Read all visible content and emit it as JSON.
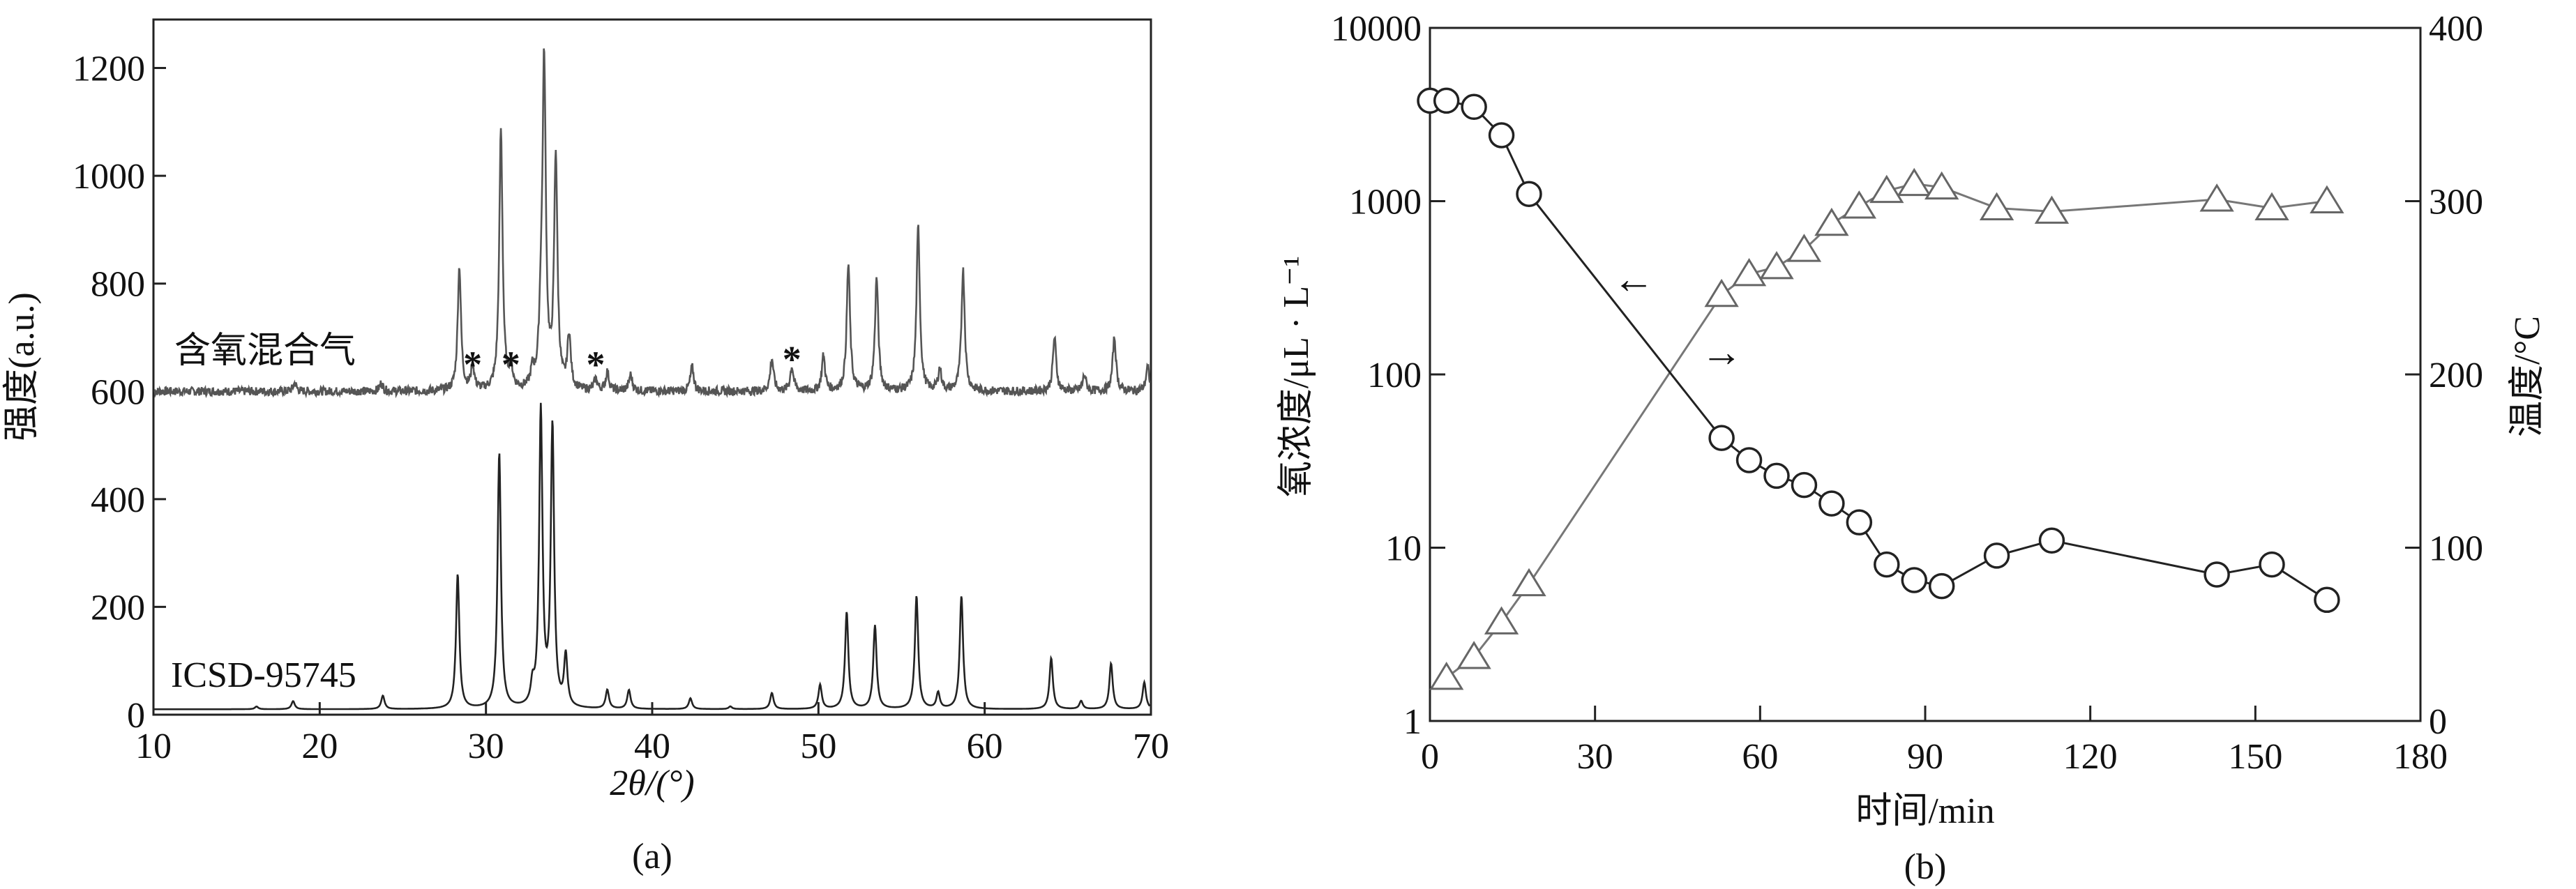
{
  "chart_data": [
    {
      "type": "line",
      "panel_label": "(a)",
      "xlabel": "2θ/(°)",
      "ylabel": "强度(a.u.)",
      "xlim": [
        10,
        70
      ],
      "ylim": [
        0,
        1290
      ],
      "xticks": [
        10,
        20,
        30,
        40,
        50,
        60,
        70
      ],
      "yticks": [
        0,
        200,
        400,
        600,
        800,
        1000,
        1200
      ],
      "grid": false,
      "series": [
        {
          "name": "含氧混合气",
          "color": "#555555",
          "baseline": 600,
          "peaks": [
            [
              18.5,
              615
            ],
            [
              23.7,
              615
            ],
            [
              28.4,
              830
            ],
            [
              29.2,
              645
            ],
            [
              30.9,
              1085
            ],
            [
              31.5,
              640
            ],
            [
              32.8,
              630
            ],
            [
              33.3,
              700
            ],
            [
              33.5,
              1200
            ],
            [
              34.2,
              1030
            ],
            [
              35.0,
              700
            ],
            [
              36.6,
              620
            ],
            [
              37.3,
              635
            ],
            [
              38.7,
              630
            ],
            [
              42.4,
              645
            ],
            [
              47.2,
              660
            ],
            [
              48.4,
              645
            ],
            [
              50.3,
              665
            ],
            [
              51.8,
              835
            ],
            [
              53.5,
              810
            ],
            [
              56.0,
              905
            ],
            [
              57.3,
              640
            ],
            [
              58.7,
              825
            ],
            [
              64.2,
              700
            ],
            [
              66.0,
              630
            ],
            [
              67.8,
              700
            ],
            [
              69.8,
              645
            ]
          ]
        },
        {
          "name": "ICSD-95745",
          "color": "#222222",
          "baseline": 10,
          "peaks": [
            [
              16.2,
              15
            ],
            [
              18.4,
              25
            ],
            [
              23.8,
              35
            ],
            [
              28.3,
              260
            ],
            [
              30.8,
              485
            ],
            [
              32.8,
              45
            ],
            [
              33.3,
              560
            ],
            [
              34.0,
              530
            ],
            [
              34.8,
              105
            ],
            [
              37.3,
              45
            ],
            [
              38.6,
              45
            ],
            [
              42.3,
              30
            ],
            [
              44.7,
              15
            ],
            [
              47.2,
              40
            ],
            [
              50.1,
              55
            ],
            [
              51.7,
              190
            ],
            [
              53.4,
              165
            ],
            [
              55.9,
              220
            ],
            [
              57.2,
              40
            ],
            [
              58.6,
              220
            ],
            [
              64.0,
              105
            ],
            [
              65.8,
              25
            ],
            [
              67.6,
              95
            ],
            [
              69.6,
              60
            ]
          ]
        }
      ],
      "annotations": [
        {
          "text": "*",
          "x": 29.2,
          "y": 665
        },
        {
          "text": "*",
          "x": 31.5,
          "y": 665
        },
        {
          "text": "*",
          "x": 36.6,
          "y": 665
        },
        {
          "text": "*",
          "x": 48.4,
          "y": 675
        }
      ]
    },
    {
      "type": "line",
      "panel_label": "(b)",
      "xlabel": "时间/min",
      "ylabel": "氧浓度/μL · L⁻¹",
      "y2label": "温度/°C",
      "xlim": [
        0,
        180
      ],
      "ylim": [
        1,
        10000
      ],
      "yscale": "log",
      "y2lim": [
        0,
        400
      ],
      "xticks": [
        0,
        30,
        60,
        90,
        120,
        150,
        180
      ],
      "yticks": [
        "1",
        "10",
        "100",
        "1000",
        "10000"
      ],
      "y2ticks": [
        0,
        100,
        200,
        300,
        400
      ],
      "grid": false,
      "series": [
        {
          "marker": "circle",
          "axis": "left",
          "x": [
            0,
            3,
            8,
            13,
            18,
            53,
            58,
            63,
            68,
            73,
            78,
            83,
            88,
            93,
            103,
            113,
            143,
            153,
            163
          ],
          "y": [
            3800,
            3800,
            3500,
            2400,
            1100,
            43,
            32,
            26,
            23,
            18,
            14,
            8,
            6.5,
            6,
            9,
            11,
            7,
            8,
            5
          ]
        },
        {
          "marker": "triangle",
          "axis": "right",
          "x": [
            3,
            8,
            13,
            18,
            53,
            58,
            63,
            68,
            73,
            78,
            83,
            88,
            93,
            103,
            113,
            143,
            153,
            163
          ],
          "y": [
            25,
            37,
            57,
            79,
            246,
            258,
            262,
            272,
            287,
            297,
            306,
            310,
            308,
            296,
            294,
            301,
            296,
            300
          ]
        }
      ],
      "annotations": [
        {
          "text": "←",
          "x": 37,
          "y": 350,
          "axis": "left"
        },
        {
          "text": "→",
          "x": 53,
          "y": 212,
          "axis": "right"
        }
      ]
    }
  ]
}
